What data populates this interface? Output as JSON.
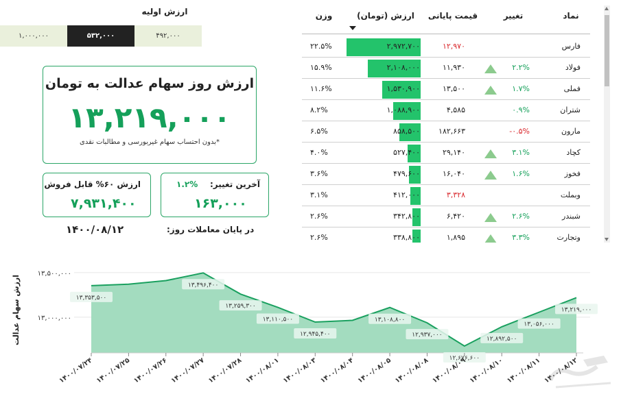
{
  "initial_value": {
    "title": "ارزش اولیه",
    "segments": [
      "۱,۰۰۰,۰۰۰",
      "۵۳۲,۰۰۰",
      "۴۹۲,۰۰۰"
    ],
    "selected": "۵۳۲,۰۰۰"
  },
  "main_card": {
    "title": "ارزش روز سهام عدالت به تومان",
    "value": "۱۳,۲۱۹,۰۰۰",
    "note": "*بدون احتساب سهام غیربورسی و مطالبات نقدی"
  },
  "sellable_card": {
    "label": "ارزش ۶۰% قابل فروش",
    "value": "۷,۹۳۱,۴۰۰"
  },
  "change_card": {
    "label": "آخرین تغییر:",
    "percent": "۱.۲%",
    "value": "۱۶۳,۰۰۰"
  },
  "end_of_day": {
    "label": "در پایان معاملات روز:",
    "date": "۱۴۰۰/۰۸/۱۲"
  },
  "table": {
    "headers": {
      "symbol": "نماد",
      "change": "تغییر",
      "close": "قیمت پایانی",
      "value": "ارزش (تومان)",
      "weight": "وزن"
    },
    "rows": [
      {
        "symbol": "فارس",
        "change": "",
        "direction": "none",
        "close": "۱۲,۹۷۰",
        "close_color": "#d9262b",
        "value": "۲,۹۷۲,۷۰۰",
        "bar": 1.0,
        "weight": "۲۲.۵%"
      },
      {
        "symbol": "فولاد",
        "change": "۲.۲%",
        "direction": "up",
        "close": "۱۱,۹۳۰",
        "close_color": "#222222",
        "value": "۲,۱۰۸,۰۰۰",
        "bar": 0.709,
        "weight": "۱۵.۹%"
      },
      {
        "symbol": "فملی",
        "change": "۱.۷%",
        "direction": "up",
        "close": "۱۳,۵۰۰",
        "close_color": "#222222",
        "value": "۱,۵۳۰,۹۰۰",
        "bar": 0.515,
        "weight": "۱۱.۶%"
      },
      {
        "symbol": "شتران",
        "change": "۰.۹%",
        "direction": "none",
        "close": "۴,۵۸۵",
        "close_color": "#222222",
        "value": "۱,۰۸۸,۹۰۰",
        "bar": 0.366,
        "weight": "۸.۲%"
      },
      {
        "symbol": "مارون",
        "change": "-۰.۵%",
        "direction": "none",
        "close": "۱۸۲,۶۶۳",
        "close_color": "#222222",
        "value": "۸۵۸,۵۰۰",
        "bar": 0.289,
        "weight": "۶.۵%"
      },
      {
        "symbol": "کچاد",
        "change": "۳.۱%",
        "direction": "up",
        "close": "۲۹,۱۴۰",
        "close_color": "#222222",
        "value": "۵۲۷,۴۰۰",
        "bar": 0.177,
        "weight": "۴.۰%"
      },
      {
        "symbol": "فخوز",
        "change": "۱.۶%",
        "direction": "up",
        "close": "۱۶,۰۴۰",
        "close_color": "#222222",
        "value": "۴۷۹,۶۰۰",
        "bar": 0.161,
        "weight": "۳.۶%"
      },
      {
        "symbol": "وبملت",
        "change": "",
        "direction": "none",
        "close": "۳,۳۲۸",
        "close_color": "#d9262b",
        "value": "۴۱۲,۰۰۰",
        "bar": 0.139,
        "weight": "۳.۱%"
      },
      {
        "symbol": "شبندر",
        "change": "۲.۶%",
        "direction": "up",
        "close": "۶,۴۲۰",
        "close_color": "#222222",
        "value": "۳۴۲,۸۰۰",
        "bar": 0.115,
        "weight": "۲.۶%"
      },
      {
        "symbol": "وتجارت",
        "change": "۳.۳%",
        "direction": "up",
        "close": "۱,۸۹۵",
        "close_color": "#222222",
        "value": "۳۳۸,۸۰۰",
        "bar": 0.114,
        "weight": "۲.۶%"
      }
    ]
  },
  "colors": {
    "accent": "#15a05a",
    "negative": "#d9262b",
    "up_arrow": "#8ccb8e",
    "bar": "#23c36b",
    "area": "#a3dcbf",
    "line": "#1aa05f"
  },
  "chart_data": {
    "type": "area",
    "ylabel": "ارزش سهام عدالت",
    "ylim": [
      12600000,
      13560000
    ],
    "yticks": [
      "۱۳,۵۰۰,۰۰۰",
      "۱۳,۰۰۰,۰۰۰"
    ],
    "ytick_values": [
      13500000,
      13000000
    ],
    "grid": true,
    "x": [
      "۱۴۰۰/۰۷/۲۴",
      "۱۴۰۰/۰۷/۲۵",
      "۱۴۰۰/۰۷/۲۶",
      "۱۴۰۰/۰۷/۲۷",
      "۱۴۰۰/۰۷/۲۸",
      "۱۴۰۰/۰۸/۰۱",
      "۱۴۰۰/۰۸/۰۳",
      "۱۴۰۰/۰۸/۰۴",
      "۱۴۰۰/۰۸/۰۵",
      "۱۴۰۰/۰۸/۰۸",
      "۱۴۰۰/۰۸/۰۹",
      "۱۴۰۰/۰۸/۱۰",
      "۱۴۰۰/۰۸/۱۱",
      "۱۴۰۰/۰۸/۱۲"
    ],
    "values": [
      13353500,
      13370000,
      13410000,
      13496400,
      13259300,
      13110500,
      12945400,
      12965000,
      13108800,
      12937000,
      12676600,
      12892500,
      13056000,
      13219000
    ],
    "labels": [
      "۱۳,۳۵۳,۵۰۰",
      "",
      "",
      "۱۳,۴۹۶,۴۰۰",
      "۱۳,۲۵۹,۳۰۰",
      "۱۳,۱۱۰,۵۰۰",
      "۱۲,۹۴۵,۴۰۰",
      "",
      "۱۳,۱۰۸,۸۰۰",
      "۱۲,۹۳۷,۰۰۰",
      "۱۲,۶۷۶,۶۰۰",
      "۱۲,۸۹۲,۵۰۰",
      "۱۳,۰۵۶,۰۰۰",
      "۱۳,۲۱۹,۰۰۰"
    ]
  }
}
